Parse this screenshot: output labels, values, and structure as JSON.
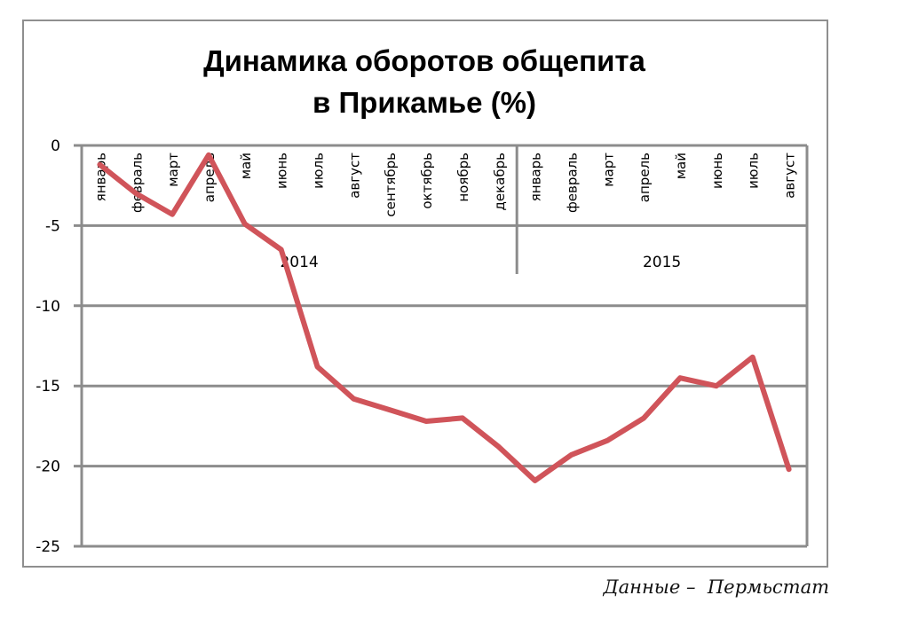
{
  "chart_data": {
    "type": "line",
    "title": "Динамика оборотов общепита в Прикамье (%)",
    "title_lines": [
      "Динамика оборотов общепита",
      "в Прикамье (%)"
    ],
    "xlabel": "",
    "ylabel": "",
    "ylim": [
      -25,
      0
    ],
    "yticks": [
      0,
      -5,
      -10,
      -15,
      -20,
      -25
    ],
    "grid": true,
    "legend": null,
    "groups": [
      {
        "label": "2014",
        "count": 12
      },
      {
        "label": "2015",
        "count": 8
      }
    ],
    "categories": [
      "январь",
      "февраль",
      "март",
      "апрель",
      "май",
      "июнь",
      "июль",
      "август",
      "сентябрь",
      "октябрь",
      "ноябрь",
      "декабрь",
      "январь",
      "февраль",
      "март",
      "апрель",
      "май",
      "июнь",
      "июль",
      "август"
    ],
    "series": [
      {
        "name": "Динамика оборотов общепита",
        "color": "#d0545a",
        "values": [
          -1.2,
          -3.0,
          -4.3,
          -0.6,
          -4.9,
          -6.5,
          -13.8,
          -15.8,
          -16.5,
          -17.2,
          -17.0,
          -18.8,
          -20.9,
          -19.3,
          -18.4,
          -17.0,
          -14.5,
          -15.0,
          -13.2,
          -20.2
        ]
      }
    ]
  },
  "footer": {
    "source_note": "Данные –  Пермьстат"
  },
  "colors": {
    "gridline": "#8c8c8c",
    "frame": "#8f8f8f",
    "series": "#d0545a"
  }
}
